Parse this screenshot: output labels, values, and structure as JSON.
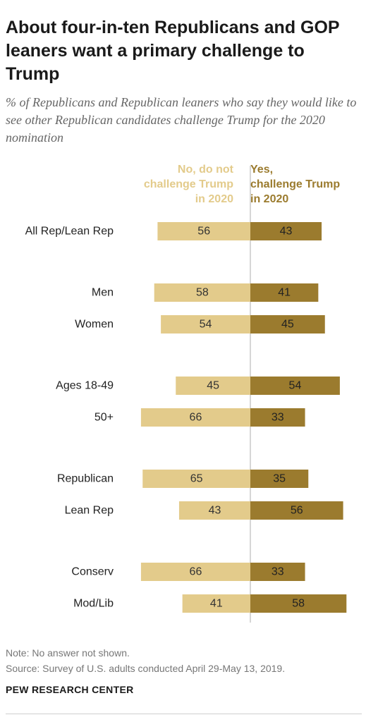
{
  "title": "About four-in-ten Republicans and GOP leaners want a primary challenge to Trump",
  "subtitle": "% of Republicans and Republican leaners who say they would like to see other Republican candidates challenge Trump for the 2020 nomination",
  "notes": {
    "note": "Note: No answer not shown.",
    "source": "Source: Survey of U.S. adults conducted April 29-May 13, 2019."
  },
  "brand": "PEW RESEARCH CENTER",
  "colors": {
    "no": "#e3cb8b",
    "yes": "#9b7b2e",
    "divider": "#c8c8c8",
    "text": "#222222"
  },
  "chart_data": {
    "type": "bar",
    "orientation": "horizontal-diverging",
    "categories": [
      "All Rep/Lean Rep",
      "Men",
      "Women",
      "Ages 18-49",
      "50+",
      "Republican",
      "Lean Rep",
      "Conserv",
      "Mod/Lib"
    ],
    "groups": [
      [
        0
      ],
      [
        1,
        2
      ],
      [
        3,
        4
      ],
      [
        5,
        6
      ],
      [
        7,
        8
      ]
    ],
    "series": [
      {
        "name": "No, do not challenge Trump in 2020",
        "name_lines": [
          "No, do not",
          "challenge Trump",
          "in 2020"
        ],
        "values": [
          56,
          58,
          54,
          45,
          66,
          65,
          43,
          66,
          41
        ]
      },
      {
        "name": "Yes, challenge Trump in 2020",
        "name_lines": [
          "Yes,",
          "challenge Trump",
          "in 2020"
        ],
        "values": [
          43,
          41,
          45,
          54,
          33,
          35,
          56,
          33,
          58
        ]
      }
    ],
    "unit": "%",
    "grid": false
  }
}
